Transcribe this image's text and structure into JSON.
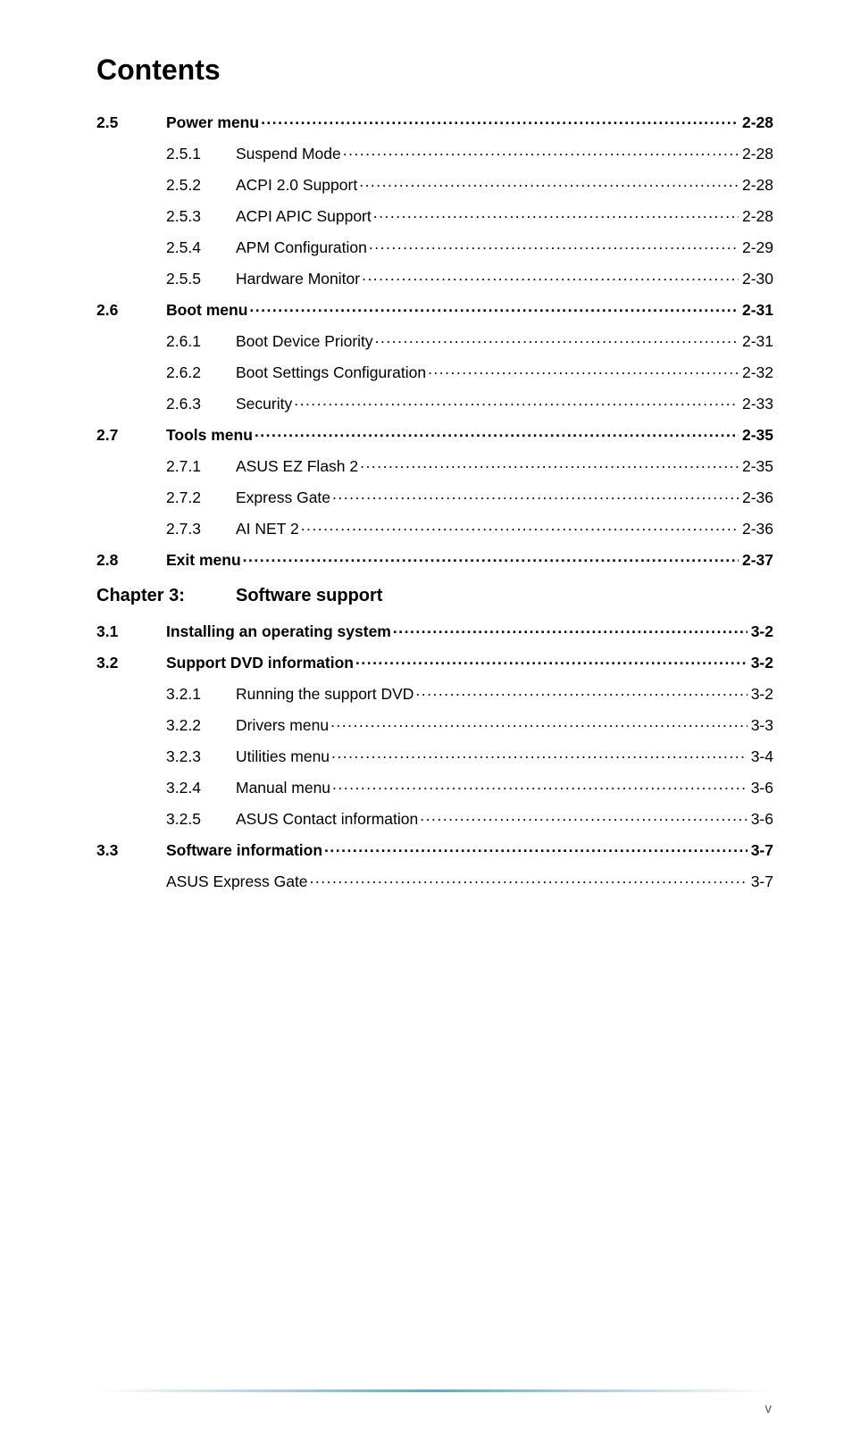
{
  "title": "Contents",
  "chapter": {
    "number": "Chapter 3:",
    "title": "Software support"
  },
  "footer_page": "v",
  "colors": {
    "rule": "#6ca5b9",
    "text": "#000000",
    "footer_text": "#595959"
  },
  "rows": [
    {
      "sec": "2.5",
      "sub": "",
      "label": "Power menu",
      "page": "2-28",
      "bold": true,
      "indent": 0
    },
    {
      "sec": "",
      "sub": "2.5.1",
      "label": "Suspend Mode ",
      "page": "2-28",
      "bold": false,
      "indent": 1
    },
    {
      "sec": "",
      "sub": "2.5.2",
      "label": "ACPI 2.0 Support ",
      "page": "2-28",
      "bold": false,
      "indent": 1
    },
    {
      "sec": "",
      "sub": "2.5.3",
      "label": "ACPI APIC Support ",
      "page": "2-28",
      "bold": false,
      "indent": 1
    },
    {
      "sec": "",
      "sub": "2.5.4",
      "label": "APM Configuration",
      "page": "2-29",
      "bold": false,
      "indent": 1
    },
    {
      "sec": "",
      "sub": "2.5.5",
      "label": "Hardware Monitor ",
      "page": "2-30",
      "bold": false,
      "indent": 1
    },
    {
      "sec": "2.6",
      "sub": "",
      "label": "Boot menu ",
      "page": "2-31",
      "bold": true,
      "indent": 0
    },
    {
      "sec": "",
      "sub": "2.6.1",
      "label": "Boot Device Priority ",
      "page": "2-31",
      "bold": false,
      "indent": 1
    },
    {
      "sec": "",
      "sub": "2.6.2",
      "label": "Boot Settings Configuration ",
      "page": "2-32",
      "bold": false,
      "indent": 1
    },
    {
      "sec": "",
      "sub": "2.6.3",
      "label": "Security",
      "page": "2-33",
      "bold": false,
      "indent": 1
    },
    {
      "sec": "2.7",
      "sub": "",
      "label": "Tools menu ",
      "page": "2-35",
      "bold": true,
      "indent": 0
    },
    {
      "sec": "",
      "sub": "2.7.1",
      "label": "ASUS EZ Flash 2",
      "page": "2-35",
      "bold": false,
      "indent": 1
    },
    {
      "sec": "",
      "sub": "2.7.2",
      "label": "Express Gate ",
      "page": "2-36",
      "bold": false,
      "indent": 1
    },
    {
      "sec": "",
      "sub": "2.7.3",
      "label": "AI NET 2",
      "page": "2-36",
      "bold": false,
      "indent": 1
    },
    {
      "sec": "2.8",
      "sub": "",
      "label": "Exit menu",
      "page": "2-37",
      "bold": true,
      "indent": 0
    }
  ],
  "rows2": [
    {
      "sec": "3.1",
      "sub": "",
      "label": "Installing an operating system ",
      "page": "3-2",
      "bold": true,
      "indent": 0
    },
    {
      "sec": "3.2",
      "sub": "",
      "label": "Support DVD information",
      "page": "3-2",
      "bold": true,
      "indent": 0
    },
    {
      "sec": "",
      "sub": "3.2.1",
      "label": "Running the support DVD",
      "page": "3-2",
      "bold": false,
      "indent": 1
    },
    {
      "sec": "",
      "sub": "3.2.2",
      "label": "Drivers menu",
      "page": "3-3",
      "bold": false,
      "indent": 1
    },
    {
      "sec": "",
      "sub": "3.2.3",
      "label": "Utilities menu ",
      "page": "3-4",
      "bold": false,
      "indent": 1
    },
    {
      "sec": "",
      "sub": "3.2.4",
      "label": "Manual menu ",
      "page": "3-6",
      "bold": false,
      "indent": 1
    },
    {
      "sec": "",
      "sub": "3.2.5",
      "label": "ASUS Contact information",
      "page": "3-6",
      "bold": false,
      "indent": 1
    },
    {
      "sec": "3.3",
      "sub": "",
      "label": "Software information ",
      "page": "3-7",
      "bold": true,
      "indent": 0
    },
    {
      "sec": "",
      "sub": "",
      "label": "ASUS Express Gate",
      "page": "3-7",
      "bold": false,
      "indent": 0,
      "nosub": true
    }
  ]
}
